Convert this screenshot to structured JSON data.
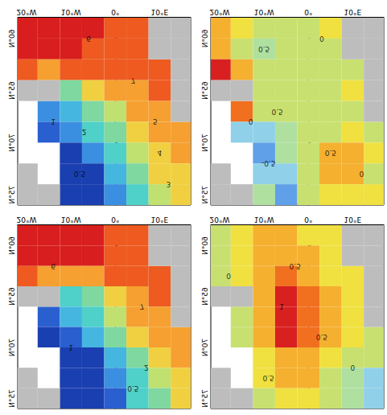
{
  "chart_data": [
    {
      "type": "contour_map",
      "xlim": [
        -22,
        17
      ],
      "xticks": [
        {
          "value": -20,
          "label": "20°W"
        },
        {
          "value": -10,
          "label": "10°W"
        },
        {
          "value": 0,
          "label": "0°"
        },
        {
          "value": 10,
          "label": "10°E"
        }
      ],
      "ylim": [
        58,
        76
      ],
      "yticks": [
        {
          "value": 60,
          "label": "60°N"
        },
        {
          "value": 65,
          "label": "65°N"
        },
        {
          "value": 70,
          "label": "70°N"
        },
        {
          "value": 75,
          "label": "75°N"
        }
      ],
      "lon": [
        -20,
        -15,
        -10,
        -5,
        0,
        5,
        10,
        15
      ],
      "lat": [
        59,
        61,
        63,
        65,
        67,
        69,
        71,
        73,
        75
      ],
      "cells": [
        [
          9,
          9,
          8.5,
          8,
          7.5,
          7.5,
          null,
          null
        ],
        [
          8.5,
          8,
          8,
          7.5,
          7,
          7,
          null,
          null
        ],
        [
          7,
          6.5,
          7,
          7,
          7,
          7,
          7.5,
          null
        ],
        [
          null,
          null,
          3,
          5,
          6,
          6.5,
          7,
          null
        ],
        [
          null,
          0.5,
          1.5,
          3,
          4.5,
          6,
          6.5,
          null
        ],
        [
          null,
          0,
          0.5,
          2,
          3.5,
          5,
          6,
          6.5
        ],
        [
          null,
          null,
          -0.5,
          0.5,
          2,
          4,
          5.5,
          6
        ],
        [
          null,
          null,
          -0.5,
          -0.5,
          1,
          3,
          5,
          5.5
        ],
        [
          null,
          null,
          -0.5,
          -1,
          0.5,
          2.5,
          4,
          5
        ]
      ],
      "land": [
        [
          10,
          59
        ],
        [
          15,
          59
        ],
        [
          10,
          61
        ],
        [
          15,
          61
        ],
        [
          15,
          63
        ],
        [
          -20,
          65
        ],
        [
          -15,
          65
        ],
        [
          15,
          65
        ],
        [
          15,
          67
        ],
        [
          -20,
          73
        ],
        [
          -20,
          75
        ],
        [
          -15,
          75
        ]
      ],
      "levels": [
        0,
        0.5,
        1,
        2,
        3,
        4,
        5,
        6,
        7,
        8
      ],
      "colors": [
        "#1a3fb0",
        "#2a5fd0",
        "#3b8fe0",
        "#45b6e0",
        "#4fd0c8",
        "#7ed8a0",
        "#c0e070",
        "#f0d040",
        "#f5a030",
        "#ee5a20",
        "#d81e1e"
      ],
      "contour_labels": [
        {
          "lon": -6,
          "lat": 60,
          "value": 6
        },
        {
          "lon": 4,
          "lat": 64,
          "value": 7
        },
        {
          "lon": 9,
          "lat": 68,
          "value": 5
        },
        {
          "lon": 10,
          "lat": 71,
          "value": 4
        },
        {
          "lon": 12,
          "lat": 74,
          "value": 3
        },
        {
          "lon": -7,
          "lat": 69,
          "value": 2
        },
        {
          "lon": -14,
          "lat": 68,
          "value": 1
        },
        {
          "lon": -8,
          "lat": 73,
          "value": 0.5
        }
      ]
    },
    {
      "type": "contour_map",
      "xlim": [
        -22,
        17
      ],
      "xticks": [
        {
          "value": -20,
          "label": "20°W"
        },
        {
          "value": -10,
          "label": "10°W"
        },
        {
          "value": 0,
          "label": "0°"
        },
        {
          "value": 10,
          "label": "10°E"
        }
      ],
      "ylim": [
        58,
        76
      ],
      "yticks": [
        {
          "value": 60,
          "label": "60°N"
        },
        {
          "value": 65,
          "label": "65°N"
        },
        {
          "value": 70,
          "label": "70°N"
        },
        {
          "value": 75,
          "label": "75°N"
        }
      ],
      "lon": [
        -20,
        -15,
        -10,
        -5,
        0,
        5,
        10,
        15
      ],
      "lat": [
        59,
        61,
        63,
        65,
        67,
        69,
        71,
        73,
        75
      ],
      "cells": [
        [
          0.5,
          0.3,
          0,
          0,
          0.2,
          0.3,
          null,
          null
        ],
        [
          0.6,
          0.2,
          -0.1,
          0,
          0.1,
          0.2,
          null,
          null
        ],
        [
          1.2,
          0.5,
          0,
          0.1,
          0,
          0.1,
          0.2,
          null
        ],
        [
          null,
          null,
          0.2,
          0,
          0.1,
          0.2,
          0.3,
          null
        ],
        [
          null,
          0.8,
          0,
          0,
          0.1,
          0.1,
          0.2,
          null
        ],
        [
          null,
          -0.3,
          -0.5,
          -0.1,
          0,
          0.2,
          0.3,
          0.2
        ],
        [
          null,
          null,
          -0.6,
          -0.2,
          0,
          0.5,
          0.7,
          0.3
        ],
        [
          null,
          null,
          -0.4,
          -0.5,
          0.1,
          0.6,
          0.6,
          0.2
        ],
        [
          null,
          null,
          -0.2,
          -0.6,
          0,
          0.3,
          0.4,
          0.3
        ]
      ],
      "land": [
        [
          10,
          59
        ],
        [
          15,
          59
        ],
        [
          10,
          61
        ],
        [
          15,
          61
        ],
        [
          15,
          63
        ],
        [
          -20,
          65
        ],
        [
          -15,
          65
        ],
        [
          15,
          65
        ],
        [
          15,
          67
        ],
        [
          -20,
          73
        ],
        [
          -20,
          75
        ],
        [
          -15,
          75
        ]
      ],
      "levels": [
        -1,
        -0.5,
        -0.25,
        0,
        0.25,
        0.5,
        0.75,
        1
      ],
      "colors": [
        "#3060d0",
        "#60a0e8",
        "#90d0e8",
        "#b0e0a0",
        "#c8e070",
        "#f0e040",
        "#f5b030",
        "#f07020",
        "#d82020"
      ],
      "contour_labels": [
        {
          "lon": -10,
          "lat": 61,
          "value": 0.5
        },
        {
          "lon": 3,
          "lat": 60,
          "value": 0
        },
        {
          "lon": -13,
          "lat": 68,
          "value": 0
        },
        {
          "lon": -7,
          "lat": 67,
          "value": 0.5
        },
        {
          "lon": -9,
          "lat": 72,
          "value": -0.5
        },
        {
          "lon": 5,
          "lat": 71,
          "value": 0.5
        },
        {
          "lon": 12,
          "lat": 73,
          "value": 0
        }
      ]
    },
    {
      "type": "contour_map",
      "xlim": [
        -22,
        17
      ],
      "xticks": [
        {
          "value": -20,
          "label": "20°W"
        },
        {
          "value": -10,
          "label": "10°W"
        },
        {
          "value": 0,
          "label": "0°"
        },
        {
          "value": 10,
          "label": "10°E"
        }
      ],
      "ylim": [
        58,
        76
      ],
      "yticks": [
        {
          "value": 60,
          "label": "60°N"
        },
        {
          "value": 65,
          "label": "65°N"
        },
        {
          "value": 70,
          "label": "70°N"
        },
        {
          "value": 75,
          "label": "75°N"
        }
      ],
      "lon": [
        -20,
        -15,
        -10,
        -5,
        0,
        5,
        10,
        15
      ],
      "lat": [
        59,
        61,
        63,
        65,
        67,
        69,
        71,
        73,
        75
      ],
      "cells": [
        [
          9,
          9,
          8.5,
          8,
          7.5,
          7.5,
          null,
          null
        ],
        [
          8.5,
          8.5,
          8,
          8,
          7.5,
          7,
          null,
          null
        ],
        [
          7,
          6,
          6,
          6.5,
          7,
          7,
          7.5,
          null
        ],
        [
          null,
          null,
          2,
          3.5,
          5.5,
          6.5,
          7,
          null
        ],
        [
          null,
          0,
          1,
          2,
          4,
          6,
          6.5,
          null
        ],
        [
          null,
          -0.5,
          0,
          1,
          3,
          5,
          6,
          6.5
        ],
        [
          null,
          null,
          -1,
          -0.5,
          1.5,
          3.5,
          5,
          6
        ],
        [
          null,
          null,
          -1,
          -1,
          0.5,
          2.5,
          4.5,
          5.5
        ],
        [
          null,
          null,
          -1,
          -1,
          0,
          2,
          3.5,
          5
        ]
      ],
      "land": [
        [
          10,
          59
        ],
        [
          15,
          59
        ],
        [
          10,
          61
        ],
        [
          15,
          61
        ],
        [
          15,
          63
        ],
        [
          -20,
          65
        ],
        [
          -15,
          65
        ],
        [
          15,
          65
        ],
        [
          15,
          67
        ],
        [
          -20,
          73
        ],
        [
          -20,
          75
        ],
        [
          -15,
          75
        ]
      ],
      "levels": [
        0,
        0.5,
        1,
        2,
        3,
        4,
        5,
        6,
        7,
        8
      ],
      "colors": [
        "#1a3fb0",
        "#2a5fd0",
        "#3b8fe0",
        "#45b6e0",
        "#4fd0c8",
        "#7ed8a0",
        "#c0e070",
        "#f0d040",
        "#f5a030",
        "#ee5a20",
        "#d81e1e"
      ],
      "contour_labels": [
        {
          "lon": -14,
          "lat": 62,
          "value": 6
        },
        {
          "lon": 6,
          "lat": 66,
          "value": 7
        },
        {
          "lon": 4,
          "lat": 74,
          "value": 0.5
        },
        {
          "lon": 7,
          "lat": 72,
          "value": 2
        },
        {
          "lon": -10,
          "lat": 70,
          "value": 1
        }
      ]
    },
    {
      "type": "contour_map",
      "xlim": [
        -22,
        17
      ],
      "xticks": [
        {
          "value": -20,
          "label": "20°W"
        },
        {
          "value": -10,
          "label": "10°W"
        },
        {
          "value": 0,
          "label": "0°"
        },
        {
          "value": 10,
          "label": "10°E"
        }
      ],
      "ylim": [
        58,
        76
      ],
      "yticks": [
        {
          "value": 60,
          "label": "60°N"
        },
        {
          "value": 65,
          "label": "65°N"
        },
        {
          "value": 70,
          "label": "70°N"
        },
        {
          "value": 75,
          "label": "75°N"
        }
      ],
      "lon": [
        -20,
        -15,
        -10,
        -5,
        0,
        5,
        10,
        15
      ],
      "lat": [
        59,
        61,
        63,
        65,
        67,
        69,
        71,
        73,
        75
      ],
      "cells": [
        [
          0,
          0.3,
          0.5,
          0.5,
          0.4,
          0.3,
          null,
          null
        ],
        [
          0.1,
          0.4,
          0.6,
          0.7,
          0.5,
          0.3,
          null,
          null
        ],
        [
          0.2,
          0.3,
          0.6,
          0.8,
          0.6,
          0.4,
          0.3,
          null
        ],
        [
          null,
          null,
          0.6,
          1,
          0.8,
          0.5,
          0.3,
          null
        ],
        [
          null,
          0.2,
          0.7,
          1.2,
          0.9,
          0.5,
          0.3,
          null
        ],
        [
          null,
          0.1,
          0.5,
          1,
          0.8,
          0.5,
          0.3,
          0.2
        ],
        [
          null,
          null,
          0.4,
          0.7,
          0.6,
          0.4,
          0.1,
          0
        ],
        [
          null,
          null,
          0.3,
          0.5,
          0.5,
          0.2,
          -0.1,
          -0.3
        ],
        [
          null,
          null,
          0.2,
          0.4,
          0.4,
          0.1,
          -0.2,
          -0.4
        ]
      ],
      "land": [
        [
          10,
          59
        ],
        [
          15,
          59
        ],
        [
          10,
          61
        ],
        [
          15,
          61
        ],
        [
          15,
          63
        ],
        [
          -20,
          65
        ],
        [
          -15,
          65
        ],
        [
          15,
          65
        ],
        [
          15,
          67
        ],
        [
          -20,
          73
        ],
        [
          -20,
          75
        ],
        [
          -15,
          75
        ]
      ],
      "levels": [
        -1,
        -0.5,
        -0.25,
        0,
        0.25,
        0.5,
        0.75,
        1
      ],
      "colors": [
        "#3060d0",
        "#60a0e8",
        "#90d0e8",
        "#b0e0a0",
        "#c8e070",
        "#f0e040",
        "#f5b030",
        "#f07020",
        "#d82020"
      ],
      "contour_labels": [
        {
          "lon": -18,
          "lat": 63,
          "value": 0
        },
        {
          "lon": -3,
          "lat": 62,
          "value": 0.5
        },
        {
          "lon": -6,
          "lat": 66,
          "value": 1
        },
        {
          "lon": 3,
          "lat": 69,
          "value": 0.5
        },
        {
          "lon": 10,
          "lat": 72,
          "value": 0
        },
        {
          "lon": -9,
          "lat": 73,
          "value": 0.5
        }
      ]
    }
  ]
}
